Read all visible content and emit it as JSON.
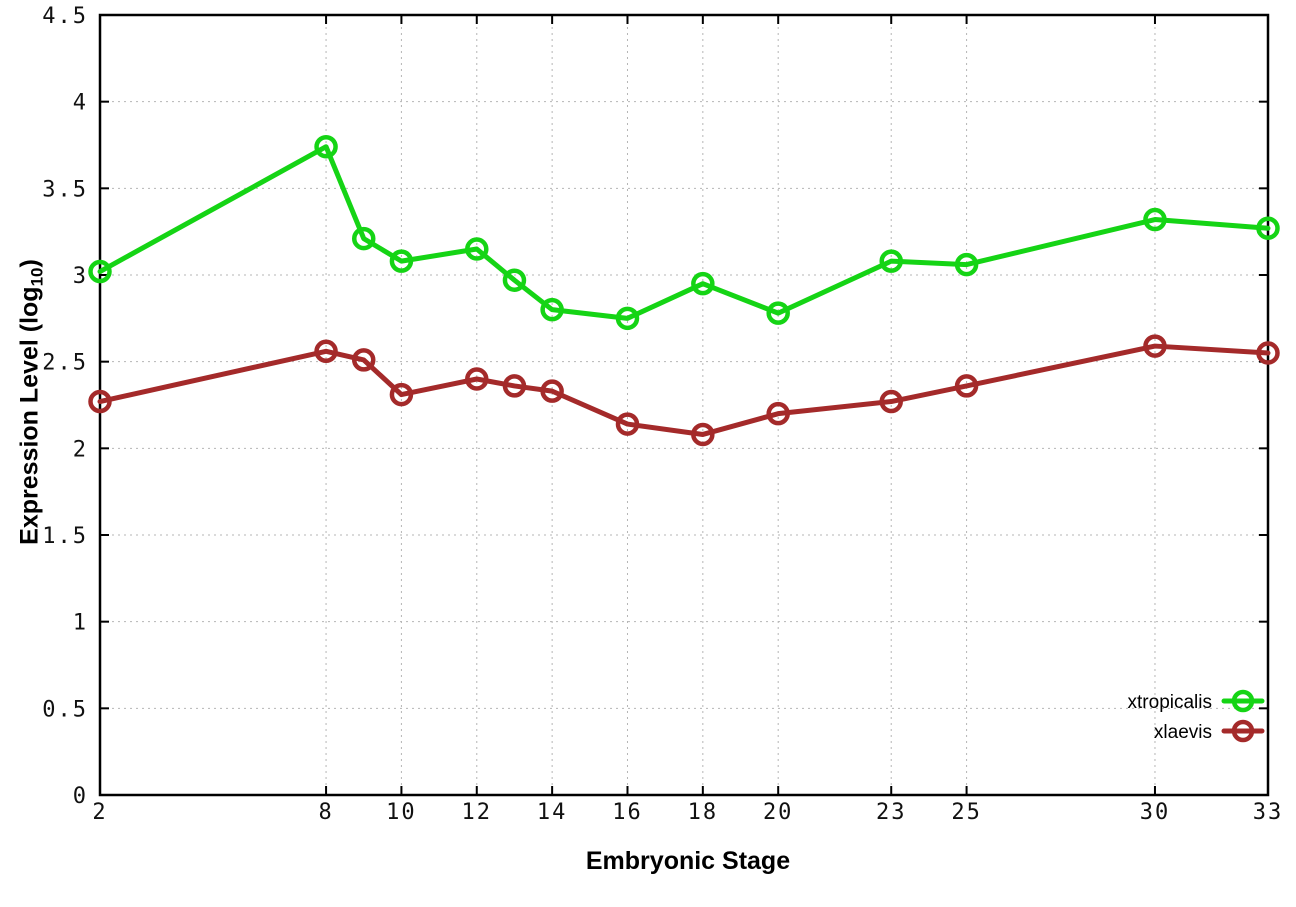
{
  "figure": {
    "background_color": "#ffffff",
    "x_axis_title": "Embryonic Stage",
    "y_axis_title_full": "Expression Level (log10)",
    "y_axis_title_parts": {
      "main": "Expression Level (log",
      "sub": "10",
      "close": ")"
    }
  },
  "chart_data": {
    "type": "line",
    "title": "",
    "xlabel": "Embryonic Stage",
    "ylabel": "Expression Level (log10)",
    "xlim": [
      2,
      33
    ],
    "ylim": [
      0,
      4.5
    ],
    "x_ticks": [
      2,
      8,
      10,
      12,
      14,
      16,
      18,
      20,
      23,
      25,
      30,
      33
    ],
    "y_ticks": [
      0,
      0.5,
      1,
      1.5,
      2,
      2.5,
      3,
      3.5,
      4,
      4.5
    ],
    "y_tick_labels": [
      "0",
      "0.5",
      "1",
      "1.5",
      "2",
      "2.5",
      "3",
      "3.5",
      "4",
      "4.5"
    ],
    "grid": true,
    "grid_style": "dotted",
    "marker": "open-circle",
    "legend_position": "bottom-right-inside",
    "x": [
      2,
      8,
      9,
      10,
      12,
      13,
      14,
      16,
      18,
      20,
      23,
      25,
      30,
      33
    ],
    "series": [
      {
        "name": "xtropicalis",
        "color": "#15d415",
        "values": [
          3.02,
          3.74,
          3.21,
          3.08,
          3.15,
          2.97,
          2.8,
          2.75,
          2.95,
          2.78,
          3.08,
          3.06,
          3.32,
          3.27
        ]
      },
      {
        "name": "xlaevis",
        "color": "#a42a2a",
        "values": [
          2.27,
          2.56,
          2.51,
          2.31,
          2.4,
          2.36,
          2.33,
          2.14,
          2.08,
          2.2,
          2.27,
          2.36,
          2.59,
          2.55
        ]
      }
    ]
  },
  "legend": {
    "entries": [
      {
        "label": "xtropicalis",
        "color": "#15d415"
      },
      {
        "label": "xlaevis",
        "color": "#a42a2a"
      }
    ]
  },
  "style": {
    "grid_color": "#b5b5b5",
    "axis_color": "#000000",
    "tick_label_color": "#111111"
  }
}
